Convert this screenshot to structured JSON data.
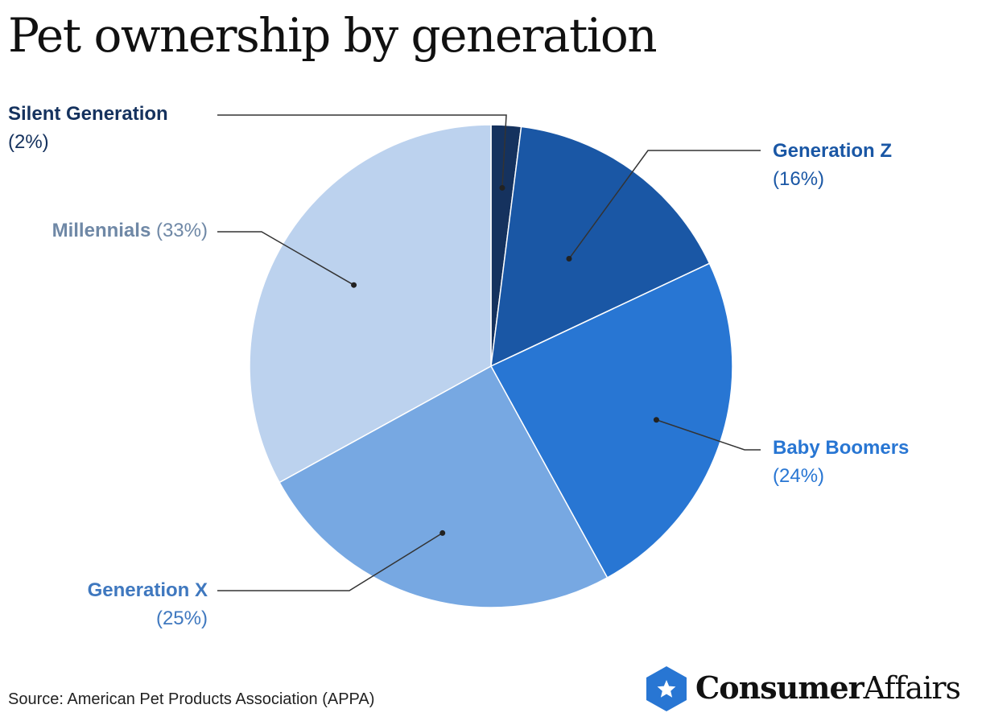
{
  "title": "Pet ownership by generation",
  "source": "Source: American Pet Products Association (APPA)",
  "logo": {
    "part1": "Consumer",
    "part2": "Affairs",
    "icon": "star-hexagon-icon"
  },
  "chart_data": {
    "type": "pie",
    "title": "Pet ownership by generation",
    "start": "12 o'clock, clockwise",
    "slices": [
      {
        "name": "Silent Generation",
        "value": 2,
        "label_pct": "(2%)",
        "color": "#15325e"
      },
      {
        "name": "Generation Z",
        "value": 16,
        "label_pct": "(16%)",
        "color": "#1a57a5"
      },
      {
        "name": "Baby Boomers",
        "value": 24,
        "label_pct": "(24%)",
        "color": "#2876d3"
      },
      {
        "name": "Generation X",
        "value": 25,
        "label_pct": "(25%)",
        "color": "#77a8e2"
      },
      {
        "name": "Millennials",
        "value": 33,
        "label_pct": "(33%)",
        "color": "#bcd2ee"
      }
    ],
    "label_colors": {
      "Silent Generation": "#15325e",
      "Generation Z": "#1a57a5",
      "Baby Boomers": "#2876d3",
      "Generation X": "#3f78bf",
      "Millennials": "#6f88a6"
    }
  }
}
